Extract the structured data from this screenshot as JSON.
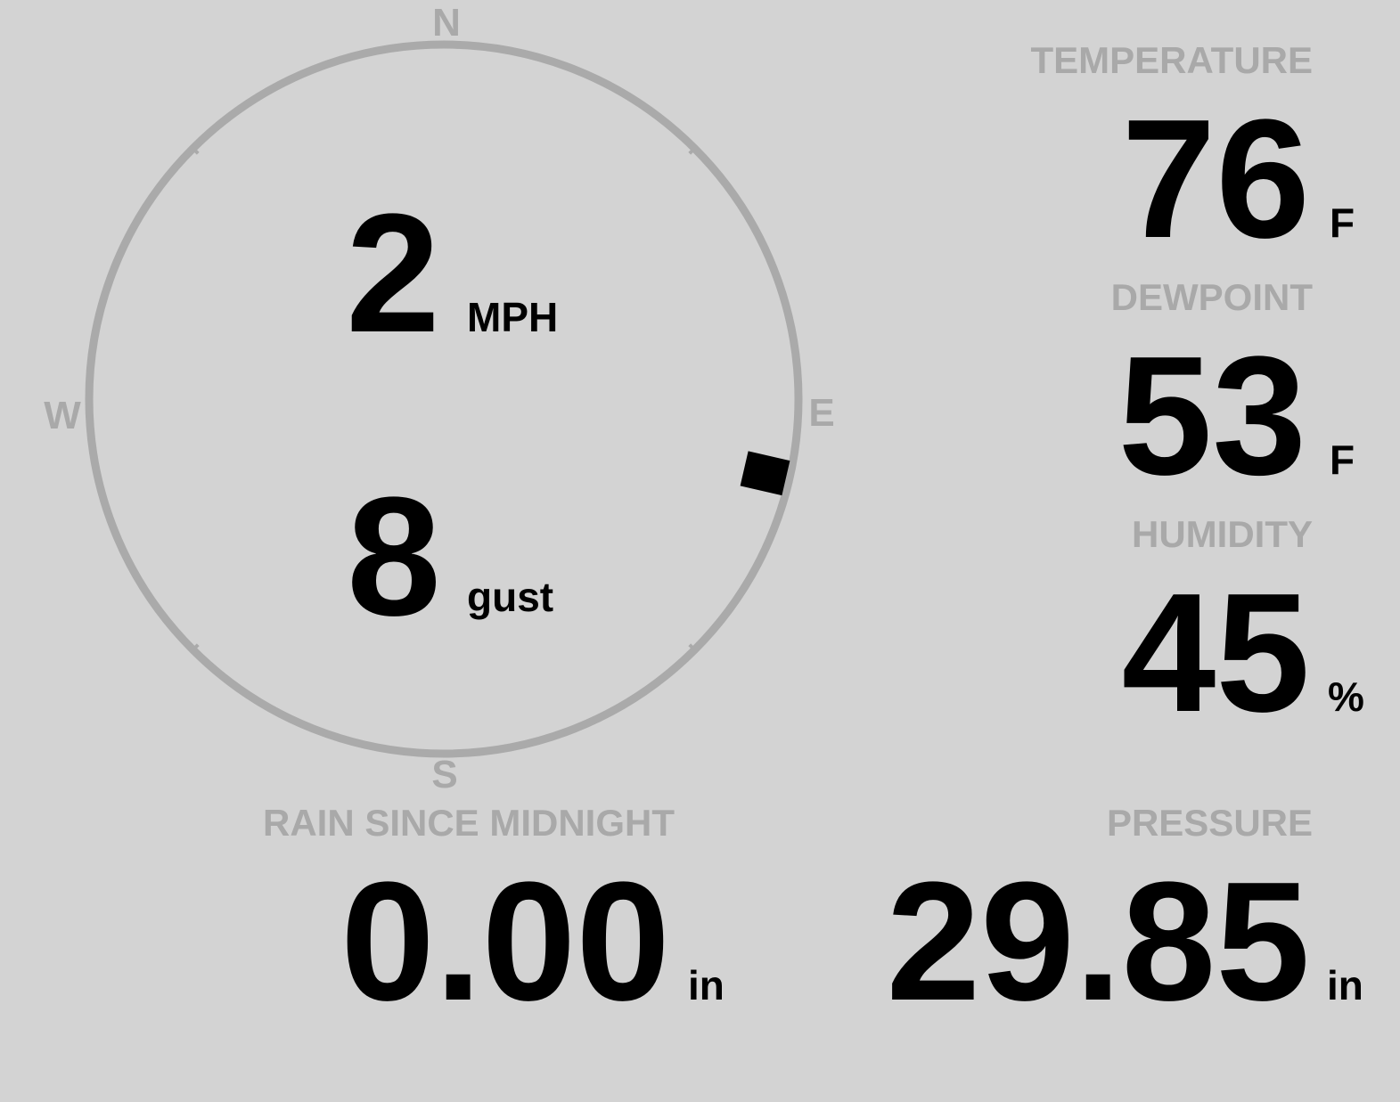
{
  "colors": {
    "background": "#d3d3d3",
    "label": "#a9a9a9",
    "value": "#000000",
    "compass_ring": "#aaaaaa"
  },
  "wind": {
    "compass": {
      "n": "N",
      "e": "E",
      "s": "S",
      "w": "W"
    },
    "direction_degrees": 103,
    "speed": "2",
    "speed_unit": "MPH",
    "gust": "8",
    "gust_unit": "gust"
  },
  "temperature": {
    "label": "TEMPERATURE",
    "value": "76",
    "unit": "F"
  },
  "dewpoint": {
    "label": "DEWPOINT",
    "value": "53",
    "unit": "F"
  },
  "humidity": {
    "label": "HUMIDITY",
    "value": "45",
    "unit": "%"
  },
  "rain": {
    "label": "RAIN SINCE MIDNIGHT",
    "value": "0.00",
    "unit": "in"
  },
  "pressure": {
    "label": "PRESSURE",
    "value": "29.85",
    "unit": "in"
  }
}
